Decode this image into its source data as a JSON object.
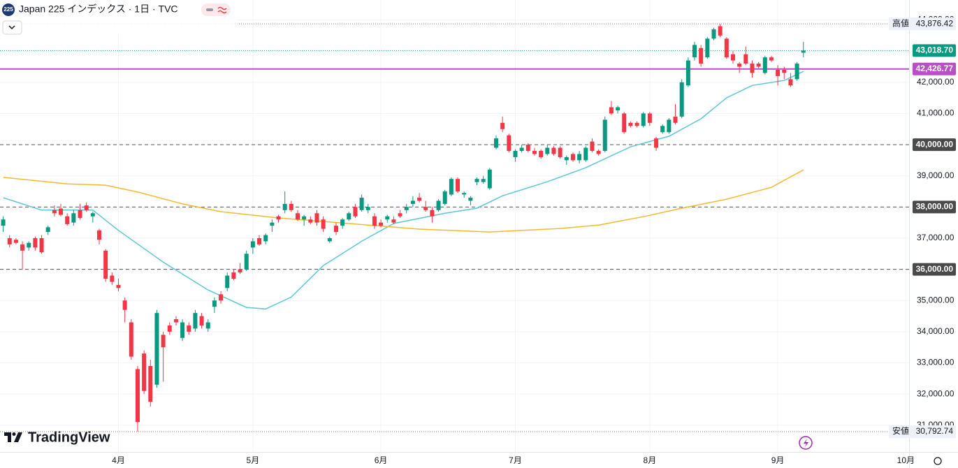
{
  "chart_data": {
    "type": "candlestick",
    "title": "Japan 225 インデックス · 1日 · TVC",
    "badge": "225",
    "brand": "TradingView",
    "up_color": "#089981",
    "down_color": "#f23645",
    "grid": true,
    "xlim": [
      -0.5,
      141.4
    ],
    "xticks": [
      {
        "value": 18,
        "label": "4月"
      },
      {
        "value": 39,
        "label": "5月"
      },
      {
        "value": 59,
        "label": "6月"
      },
      {
        "value": 80,
        "label": "7月"
      },
      {
        "value": 101,
        "label": "8月"
      },
      {
        "value": 121,
        "label": "9月"
      },
      {
        "value": 141,
        "label": "10月"
      }
    ],
    "ylim": [
      30300,
      44640
    ],
    "yticks": [
      {
        "value": 31000,
        "label": "31,000.00"
      },
      {
        "value": 32000,
        "label": "32,000.00"
      },
      {
        "value": 33000,
        "label": "33,000.00"
      },
      {
        "value": 34000,
        "label": "34,000.00"
      },
      {
        "value": 35000,
        "label": "35,000.00"
      },
      {
        "value": 36000,
        "label": "36,000.00"
      },
      {
        "value": 37000,
        "label": "37,000.00"
      },
      {
        "value": 38000,
        "label": "38,000.00"
      },
      {
        "value": 39000,
        "label": "39,000.00"
      },
      {
        "value": 40000,
        "label": "40,000.00"
      },
      {
        "value": 41000,
        "label": "41,000.00"
      },
      {
        "value": 42000,
        "label": "42,000.00"
      },
      {
        "value": 43000,
        "label": "43,000.00"
      },
      {
        "value": 44000,
        "label": "44,000.00"
      }
    ],
    "ohlc": [
      [
        37400,
        37700,
        37200,
        37600
      ],
      [
        37000,
        37100,
        36700,
        36800
      ],
      [
        36950,
        37000,
        36800,
        36850
      ],
      [
        36800,
        36900,
        36000,
        36600
      ],
      [
        36700,
        36900,
        36600,
        36850
      ],
      [
        37000,
        37050,
        36600,
        36700
      ],
      [
        37000,
        37100,
        36500,
        36550
      ],
      [
        37200,
        37400,
        37100,
        37350
      ],
      [
        37900,
        38050,
        37700,
        37800
      ],
      [
        37950,
        38100,
        37700,
        37750
      ],
      [
        37700,
        37800,
        37400,
        37450
      ],
      [
        37500,
        37900,
        37400,
        37800
      ],
      [
        37900,
        38100,
        37600,
        37650
      ],
      [
        38050,
        38150,
        37850,
        37900
      ],
      [
        37700,
        37850,
        37500,
        37800
      ],
      [
        37250,
        37300,
        36800,
        36950
      ],
      [
        36600,
        36650,
        35600,
        35700
      ],
      [
        35800,
        35900,
        35500,
        35600
      ],
      [
        35500,
        35700,
        35300,
        35400
      ],
      [
        35000,
        35100,
        34300,
        34700
      ],
      [
        34300,
        34400,
        33100,
        33200
      ],
      [
        32800,
        32900,
        30792.74,
        31100
      ],
      [
        33300,
        33400,
        32000,
        32100
      ],
      [
        32900,
        33100,
        31600,
        31750
      ],
      [
        32300,
        34700,
        32200,
        34600
      ],
      [
        33900,
        34000,
        32400,
        33500
      ],
      [
        34200,
        34300,
        33900,
        34000
      ],
      [
        34400,
        34500,
        34200,
        34300
      ],
      [
        33800,
        34400,
        33700,
        34300
      ],
      [
        34200,
        34300,
        33900,
        34000
      ],
      [
        34100,
        34700,
        34000,
        34600
      ],
      [
        34500,
        34600,
        34100,
        34200
      ],
      [
        34100,
        34400,
        34000,
        34300
      ],
      [
        34800,
        35100,
        34600,
        35000
      ],
      [
        35200,
        35300,
        34900,
        35000
      ],
      [
        35400,
        35900,
        35300,
        35800
      ],
      [
        35900,
        36000,
        35650,
        35700
      ],
      [
        36000,
        36200,
        35850,
        35900
      ],
      [
        36000,
        36600,
        35950,
        36500
      ],
      [
        36700,
        37000,
        36500,
        36900
      ],
      [
        37000,
        37100,
        36750,
        36800
      ],
      [
        36900,
        37150,
        36800,
        37100
      ],
      [
        37400,
        37600,
        37200,
        37500
      ],
      [
        37700,
        37750,
        37500,
        37600
      ],
      [
        37900,
        38500,
        37800,
        38100
      ],
      [
        38100,
        38200,
        37850,
        37900
      ],
      [
        37800,
        37900,
        37550,
        37600
      ],
      [
        37600,
        37750,
        37400,
        37700
      ],
      [
        37600,
        37700,
        37450,
        37500
      ],
      [
        37800,
        37900,
        37400,
        37500
      ],
      [
        37600,
        37700,
        37200,
        37300
      ],
      [
        36900,
        37050,
        36850,
        37000
      ],
      [
        37400,
        37500,
        37100,
        37200
      ],
      [
        37400,
        37650,
        37300,
        37600
      ],
      [
        37600,
        37850,
        37550,
        37800
      ],
      [
        38000,
        38100,
        37650,
        37700
      ],
      [
        37900,
        38400,
        37850,
        38300
      ],
      [
        37900,
        38100,
        37800,
        38000
      ],
      [
        37700,
        37800,
        37300,
        37400
      ],
      [
        37500,
        37600,
        37350,
        37400
      ],
      [
        37600,
        37750,
        37500,
        37700
      ],
      [
        37600,
        37700,
        37450,
        37500
      ],
      [
        37800,
        37900,
        37650,
        37700
      ],
      [
        37900,
        38100,
        37800,
        38000
      ],
      [
        38100,
        38350,
        38000,
        38200
      ],
      [
        38300,
        38450,
        38150,
        38200
      ],
      [
        38000,
        38200,
        37850,
        37900
      ],
      [
        37900,
        38000,
        37500,
        37700
      ],
      [
        37900,
        38250,
        37850,
        38200
      ],
      [
        38100,
        38550,
        38050,
        38500
      ],
      [
        38400,
        38950,
        38350,
        38900
      ],
      [
        38900,
        38950,
        38450,
        38500
      ],
      [
        38400,
        38500,
        38300,
        38450
      ],
      [
        38200,
        38350,
        38050,
        38300
      ],
      [
        38800,
        38950,
        38700,
        38900
      ],
      [
        38800,
        39000,
        38750,
        38900
      ],
      [
        38600,
        39250,
        38550,
        39200
      ],
      [
        39900,
        40300,
        39850,
        40200
      ],
      [
        40700,
        40900,
        40400,
        40500
      ],
      [
        40300,
        40350,
        39750,
        39800
      ],
      [
        39600,
        39850,
        39450,
        39800
      ],
      [
        39800,
        40000,
        39750,
        39900
      ],
      [
        40000,
        40050,
        39750,
        39800
      ],
      [
        39800,
        39900,
        39650,
        39700
      ],
      [
        39800,
        39850,
        39550,
        39600
      ],
      [
        39700,
        40000,
        39650,
        39900
      ],
      [
        39900,
        39950,
        39650,
        39700
      ],
      [
        39900,
        39950,
        39550,
        39600
      ],
      [
        39500,
        39650,
        39350,
        39600
      ],
      [
        39700,
        39750,
        39450,
        39500
      ],
      [
        39500,
        39800,
        39400,
        39700
      ],
      [
        39500,
        39950,
        39450,
        39900
      ],
      [
        40100,
        40200,
        39750,
        39800
      ],
      [
        39800,
        39850,
        39650,
        39700
      ],
      [
        39800,
        40900,
        39750,
        40800
      ],
      [
        41200,
        41400,
        40950,
        41000
      ],
      [
        41100,
        41250,
        41000,
        41200
      ],
      [
        41000,
        41050,
        40350,
        40400
      ],
      [
        40700,
        40750,
        40550,
        40600
      ],
      [
        40700,
        40750,
        40550,
        40600
      ],
      [
        40600,
        41050,
        40550,
        41000
      ],
      [
        41000,
        41050,
        40600,
        40700
      ],
      [
        40200,
        40250,
        39800,
        39900
      ],
      [
        40400,
        40650,
        40350,
        40600
      ],
      [
        40400,
        40850,
        40350,
        40800
      ],
      [
        40900,
        41300,
        40650,
        40700
      ],
      [
        40900,
        42100,
        40850,
        42000
      ],
      [
        41900,
        42800,
        41850,
        42700
      ],
      [
        42800,
        43300,
        42700,
        43200
      ],
      [
        43100,
        43200,
        42500,
        42600
      ],
      [
        42800,
        43450,
        42750,
        43400
      ],
      [
        43400,
        43750,
        43350,
        43700
      ],
      [
        43800,
        43876.42,
        43450,
        43500
      ],
      [
        43400,
        43450,
        42750,
        42800
      ],
      [
        42900,
        43000,
        42600,
        42700
      ],
      [
        42600,
        42650,
        42300,
        42500
      ],
      [
        42900,
        43150,
        42550,
        42600
      ],
      [
        42600,
        42700,
        42150,
        42300
      ],
      [
        42600,
        42650,
        42450,
        42500
      ],
      [
        42300,
        42850,
        42250,
        42800
      ],
      [
        42800,
        42850,
        42650,
        42700
      ],
      [
        42400,
        42550,
        41900,
        42200
      ],
      [
        42400,
        42500,
        42100,
        42300
      ],
      [
        42100,
        42300,
        41850,
        41900
      ],
      [
        42100,
        42650,
        42050,
        42600
      ],
      [
        42950,
        43300,
        42800,
        43018.7
      ]
    ],
    "lines": [
      {
        "color": "#5bc8d4",
        "x": [
          0,
          6,
          14,
          18,
          25,
          32,
          38,
          41,
          45,
          50,
          56,
          61,
          69,
          74,
          78,
          85,
          91,
          98,
          104,
          109,
          113,
          117,
          122,
          125
        ],
        "values": [
          38300,
          37900,
          37900,
          37250,
          36230,
          35340,
          34780,
          34730,
          35110,
          36120,
          36900,
          37470,
          37800,
          37960,
          38360,
          38810,
          39260,
          39930,
          40270,
          40830,
          41500,
          41900,
          42060,
          42350
        ]
      },
      {
        "color": "#f5b82e",
        "x": [
          0,
          10,
          16,
          21,
          28,
          34,
          43,
          54,
          65,
          76,
          87,
          93,
          100,
          106,
          113,
          120,
          125
        ],
        "values": [
          38950,
          38740,
          38700,
          38480,
          38100,
          37850,
          37650,
          37470,
          37290,
          37200,
          37310,
          37420,
          37690,
          37960,
          38250,
          38630,
          39190
        ]
      }
    ],
    "levels": [
      {
        "value": 40000,
        "label": "40,000.00"
      },
      {
        "value": 38000,
        "label": "38,000.00"
      },
      {
        "value": 36000,
        "label": "36,000.00"
      }
    ],
    "hline": {
      "value": 42426.77,
      "label": "42,426.77",
      "color": "#b84fc4"
    },
    "last": {
      "value": 43018.7,
      "label": "43,018.70"
    },
    "high": {
      "name": "高値",
      "value": 43876.42,
      "label": "43,876.42"
    },
    "low": {
      "name": "安値",
      "value": 30792.74,
      "label": "30,792.74"
    }
  }
}
